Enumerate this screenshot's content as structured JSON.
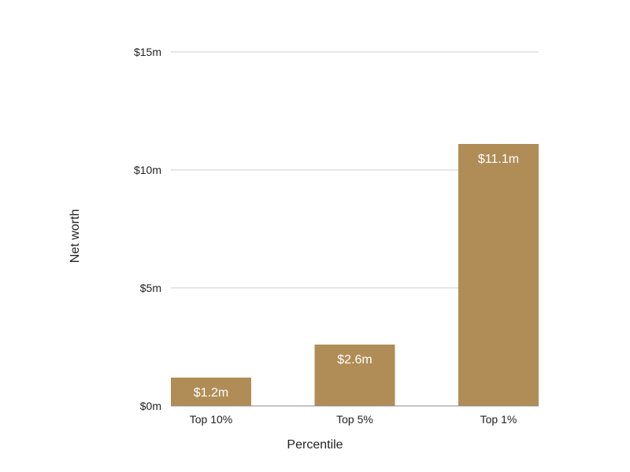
{
  "chart_data": {
    "type": "bar",
    "categories": [
      "Top 10%",
      "Top 5%",
      "Top 1%"
    ],
    "values": [
      1.2,
      2.6,
      11.1
    ],
    "value_labels": [
      "$1.2m",
      "$2.6m",
      "$11.1m"
    ],
    "xlabel": "Percentile",
    "ylabel": "Net worth",
    "ylim": [
      0,
      15
    ],
    "yticks": [
      0,
      5,
      10,
      15
    ],
    "ytick_labels": [
      "$0m",
      "$5m",
      "$10m",
      "$15m"
    ],
    "grid": true,
    "bar_color": "#b08d57",
    "grid_color": "#cccccc",
    "axis_color": "#888888"
  }
}
